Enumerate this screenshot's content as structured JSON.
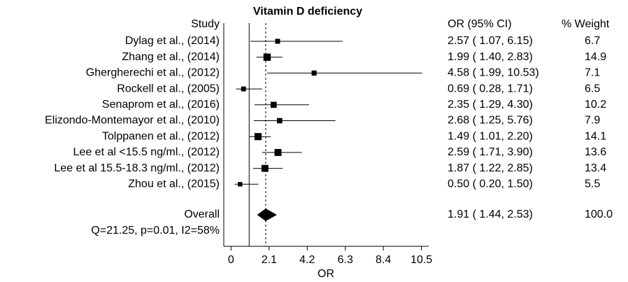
{
  "chart_data": {
    "type": "forest",
    "title": "Vitamin D deficiency",
    "study_header": "Study",
    "ci_header": "OR (95% CI)",
    "weight_header": "% Weight",
    "xlabel": "OR",
    "studies": [
      "Dylag et al., (2014)",
      "Zhang et al., (2014)",
      "Ghergherechi et al., (2012)",
      "Rockell et al., (2005)",
      "Senaprom et al., (2016)",
      "Elizondo-Montemayor et al., (2010)",
      "Tolppanen et al., (2012)",
      "Lee et al <15.5 ng/ml., (2012)",
      "Lee et al 15.5-18.3 ng/ml., (2012)",
      "Zhou et al., (2015)"
    ],
    "or": [
      2.57,
      1.99,
      4.58,
      0.69,
      2.35,
      2.68,
      1.49,
      2.59,
      1.87,
      0.5
    ],
    "lower": [
      1.07,
      1.4,
      1.99,
      0.28,
      1.29,
      1.25,
      1.01,
      1.71,
      1.22,
      0.2
    ],
    "upper": [
      6.15,
      2.83,
      10.53,
      1.71,
      4.3,
      5.76,
      2.2,
      3.9,
      2.85,
      1.5
    ],
    "value_labels": [
      "2.57 ( 1.07, 6.15)",
      "1.99 ( 1.40, 2.83)",
      "4.58 ( 1.99, 10.53)",
      "0.69 ( 0.28, 1.71)",
      "2.35 ( 1.29, 4.30)",
      "2.68 ( 1.25, 5.76)",
      "1.49 ( 1.01, 2.20)",
      "2.59 ( 1.71, 3.90)",
      "1.87 ( 1.22, 2.85)",
      "0.50 ( 0.20, 1.50)"
    ],
    "weights": [
      6.7,
      14.9,
      7.1,
      6.5,
      10.2,
      7.9,
      14.1,
      13.6,
      13.4,
      5.5
    ],
    "overall": {
      "label": "Overall",
      "or": 1.91,
      "lower": 1.44,
      "upper": 2.53,
      "value_label": "1.91 ( 1.44, 2.53)",
      "weight": {
        "value": 100,
        "label": "100.0"
      }
    },
    "heterogeneity": "Q=21.25, p=0.01, I2=58%",
    "null_line": 1,
    "xlim": [
      -0.4,
      10.9
    ],
    "xticks": [
      0,
      2.1,
      4.2,
      6.3,
      8.4,
      10.5
    ],
    "color": "#000000"
  }
}
